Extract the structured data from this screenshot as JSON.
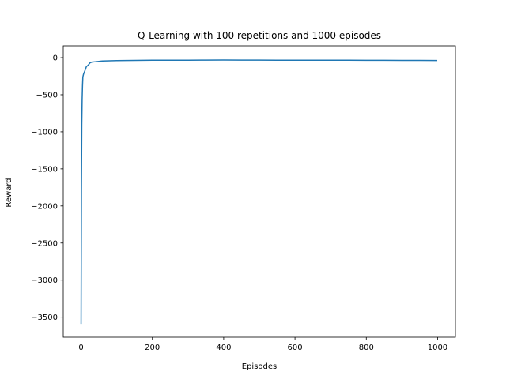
{
  "chart_data": {
    "type": "line",
    "title": "Q-Learning with 100 repetitions and 1000 episodes",
    "xlabel": "Episodes",
    "ylabel": "Reward",
    "xlim": [
      -50,
      1050
    ],
    "ylim": [
      -3770,
      160
    ],
    "xticks": [
      0,
      200,
      400,
      600,
      800,
      1000
    ],
    "yticks": [
      0,
      -500,
      -1000,
      -1500,
      -2000,
      -2500,
      -3000,
      -3500
    ],
    "xtick_labels": [
      "0",
      "200",
      "400",
      "600",
      "800",
      "1000"
    ],
    "ytick_labels": [
      "0",
      "−500",
      "−1000",
      "−1500",
      "−2000",
      "−2500",
      "−3000",
      "−3500"
    ],
    "grid": false,
    "series": [
      {
        "color": "#1f77b4",
        "x": [
          0,
          1,
          2,
          3,
          4,
          5,
          7,
          10,
          12,
          15,
          20,
          25,
          30,
          40,
          50,
          60,
          80,
          100,
          150,
          200,
          250,
          300,
          350,
          400,
          450,
          500,
          550,
          600,
          650,
          700,
          750,
          800,
          850,
          900,
          950,
          999
        ],
        "y": [
          -3590,
          -1800,
          -900,
          -560,
          -380,
          -260,
          -220,
          -185,
          -160,
          -120,
          -100,
          -70,
          -60,
          -55,
          -50,
          -45,
          -42,
          -40,
          -37,
          -35,
          -34,
          -34,
          -33,
          -32,
          -33,
          -33,
          -34,
          -35,
          -34,
          -35,
          -35,
          -36,
          -36,
          -37,
          -37,
          -38
        ]
      }
    ]
  }
}
